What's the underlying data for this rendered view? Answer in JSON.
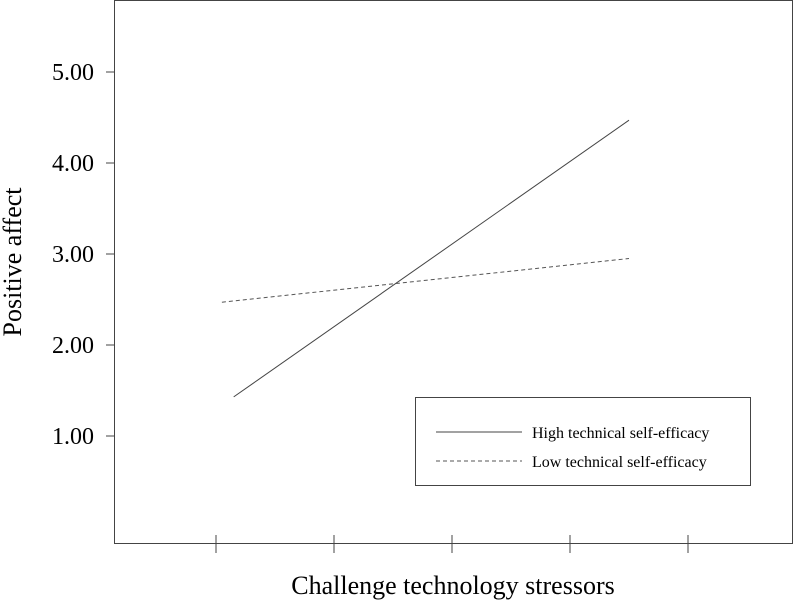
{
  "chart_data": {
    "type": "line",
    "title": "",
    "xlabel": "Challenge technology stressors",
    "ylabel": "Positive affect",
    "ylim": [
      0,
      5.8
    ],
    "xlim": [
      0,
      5.5
    ],
    "y_ticks": [
      {
        "value": 1,
        "label": "1.00"
      },
      {
        "value": 2,
        "label": "2.00"
      },
      {
        "value": 3,
        "label": "3.00"
      },
      {
        "value": 4,
        "label": "4.00"
      },
      {
        "value": 5,
        "label": "5.00"
      }
    ],
    "x_ticks": [
      0.85,
      1.85,
      2.85,
      3.85,
      4.85
    ],
    "grid": false,
    "legend_position": "bottom-right",
    "series": [
      {
        "name": "High technical self-efficacy",
        "style": "solid",
        "color": "#444444",
        "x": [
          1.0,
          4.35
        ],
        "y": [
          1.43,
          4.47
        ]
      },
      {
        "name": "Low technical self-efficacy",
        "style": "dashed",
        "color": "#555555",
        "x": [
          0.9,
          4.35
        ],
        "y": [
          2.47,
          2.95
        ]
      }
    ]
  }
}
